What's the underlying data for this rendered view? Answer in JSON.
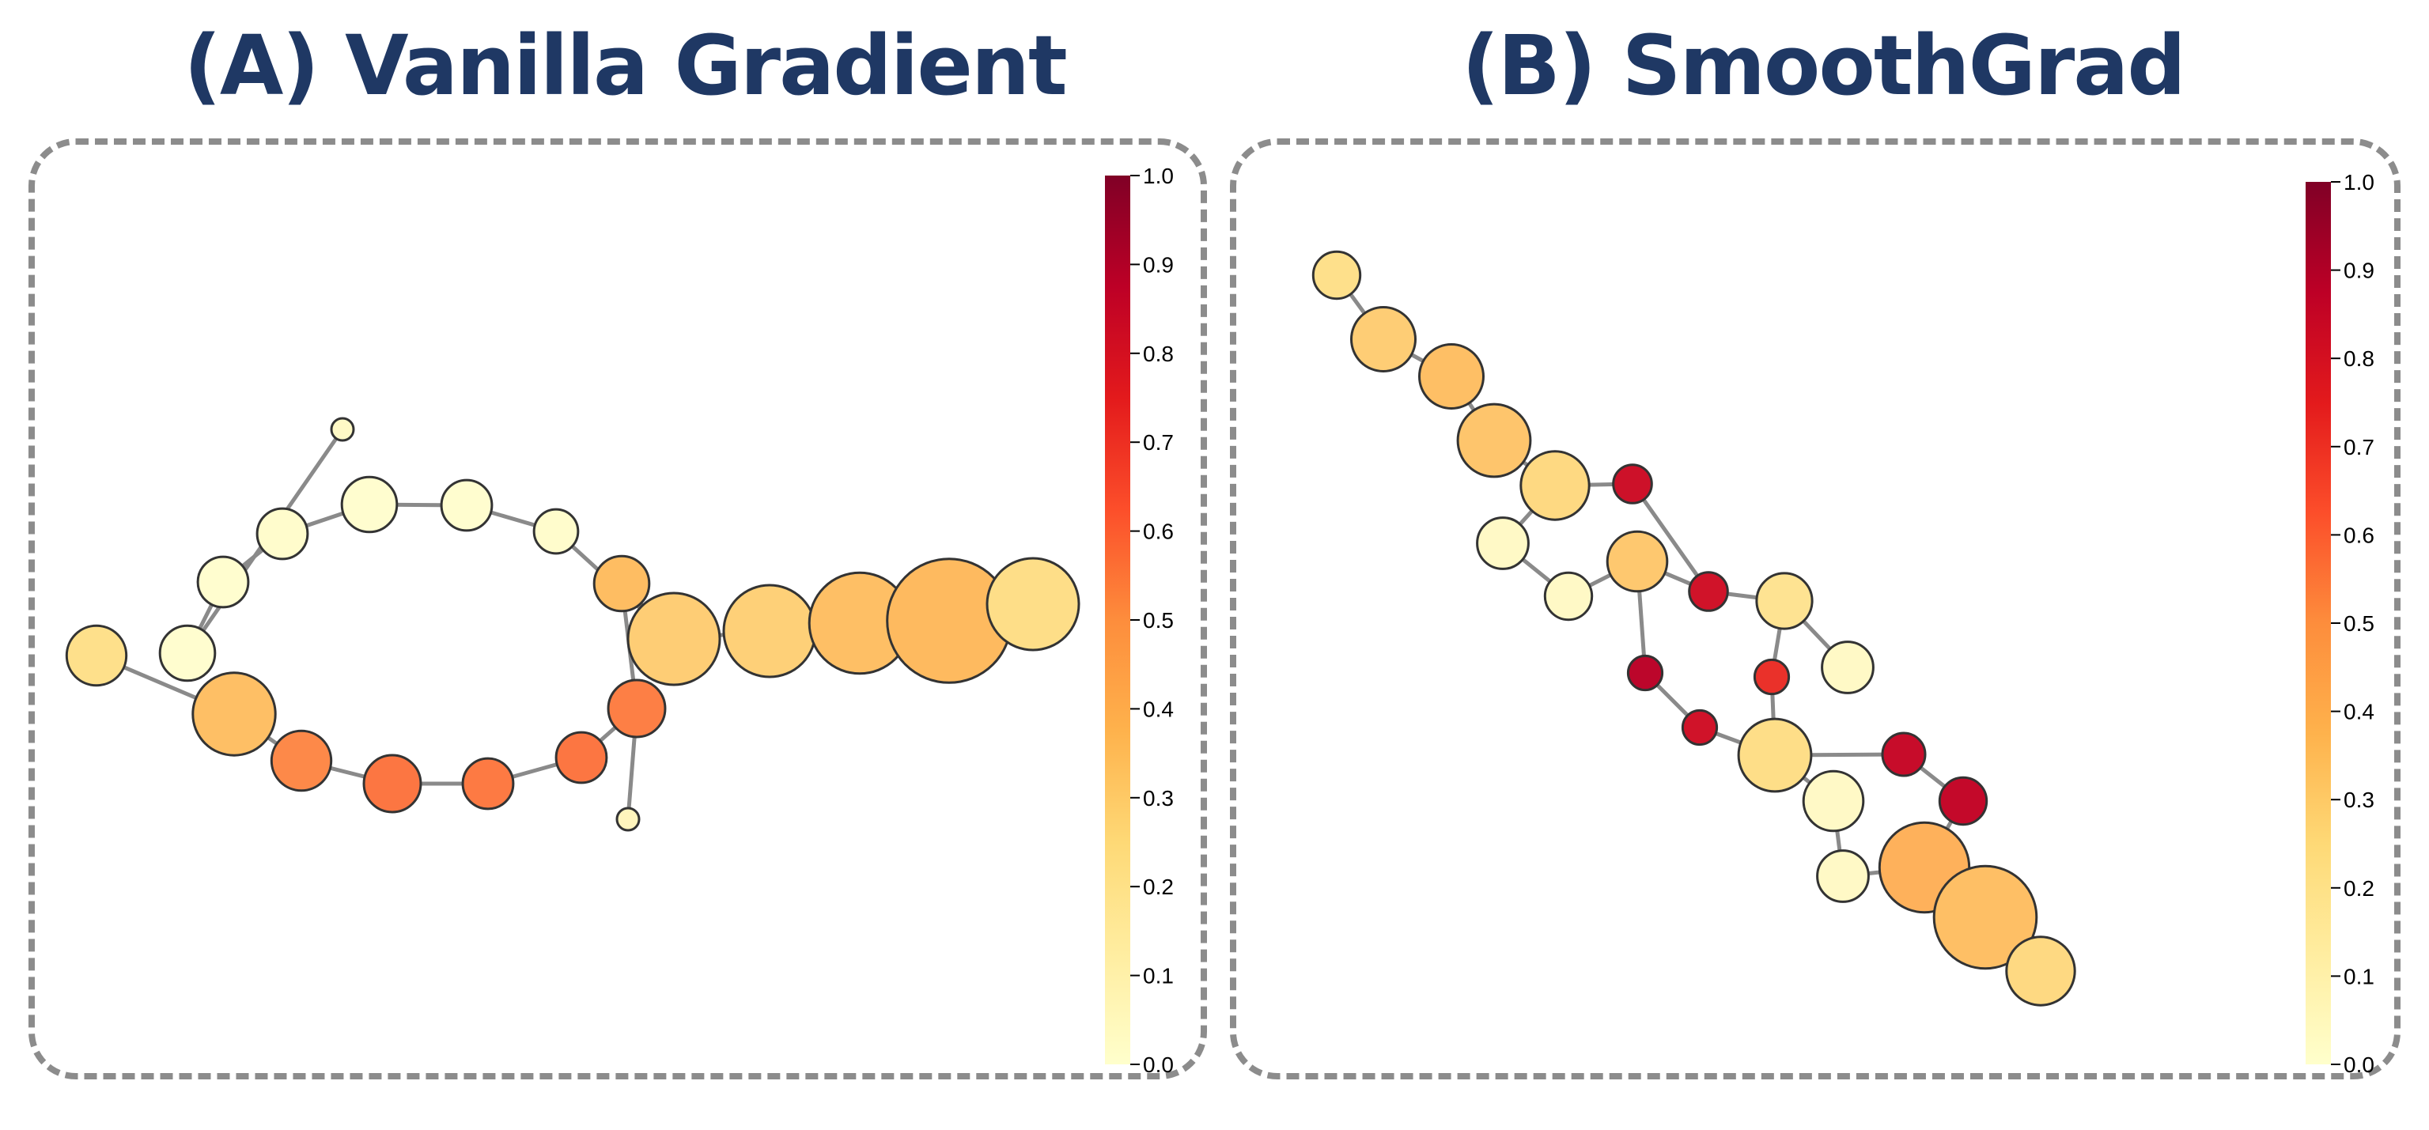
{
  "panels": [
    {
      "id": "A",
      "title": "(A) Vanilla Gradient",
      "colormap": "YlOrRd",
      "colorbar": {
        "min": 0.0,
        "max": 1.0,
        "ticks": [
          "0.0",
          "0.1",
          "0.2",
          "0.3",
          "0.4",
          "0.5",
          "0.6",
          "0.7",
          "0.8",
          "0.9",
          "1.0"
        ]
      },
      "graph": {
        "nodes": [
          {
            "id": 0,
            "value": 0.05,
            "weight": 0.2
          },
          {
            "id": 1,
            "value": 0.02,
            "weight": 0.6
          },
          {
            "id": 2,
            "value": 0.02,
            "weight": 0.55
          },
          {
            "id": 3,
            "value": 0.03,
            "weight": 0.55
          },
          {
            "id": 4,
            "value": 0.02,
            "weight": 0.6
          },
          {
            "id": 5,
            "value": 0.02,
            "weight": 0.55
          },
          {
            "id": 6,
            "value": 0.03,
            "weight": 0.48
          },
          {
            "id": 7,
            "value": 0.31,
            "weight": 1.0
          },
          {
            "id": 8,
            "value": 0.37,
            "weight": 0.6
          },
          {
            "id": 9,
            "value": 0.55,
            "weight": 0.62
          },
          {
            "id": 10,
            "value": 0.57,
            "weight": 0.55
          },
          {
            "id": 11,
            "value": 0.56,
            "weight": 0.55
          },
          {
            "id": 12,
            "value": 0.57,
            "weight": 0.62
          },
          {
            "id": 13,
            "value": 0.53,
            "weight": 0.65
          },
          {
            "id": 14,
            "value": 0.36,
            "weight": 0.9
          },
          {
            "id": 15,
            "value": 0.24,
            "weight": 0.65
          },
          {
            "id": 16,
            "value": 0.08,
            "weight": 0.24
          },
          {
            "id": 17,
            "value": 0.3,
            "weight": 1.0
          },
          {
            "id": 18,
            "value": 0.36,
            "weight": 1.1
          },
          {
            "id": 19,
            "value": 0.38,
            "weight": 1.35
          },
          {
            "id": 20,
            "value": 0.25,
            "weight": 1.0
          }
        ],
        "edges": [
          [
            0,
            1
          ],
          [
            1,
            2
          ],
          [
            2,
            3
          ],
          [
            3,
            4
          ],
          [
            4,
            5
          ],
          [
            5,
            6
          ],
          [
            6,
            7
          ],
          [
            7,
            8
          ],
          [
            8,
            9
          ],
          [
            9,
            10
          ],
          [
            10,
            11
          ],
          [
            11,
            12
          ],
          [
            12,
            13
          ],
          [
            13,
            14
          ],
          [
            14,
            15
          ],
          [
            9,
            16
          ],
          [
            7,
            17
          ],
          [
            17,
            18
          ],
          [
            18,
            19
          ],
          [
            19,
            20
          ]
        ]
      }
    },
    {
      "id": "B",
      "title": "(B) SmoothGrad",
      "colormap": "YlOrRd",
      "colorbar": {
        "min": 0.0,
        "max": 1.0,
        "ticks": [
          "0.0",
          "0.1",
          "0.2",
          "0.3",
          "0.4",
          "0.5",
          "0.6",
          "0.7",
          "0.8",
          "0.9",
          "1.0"
        ]
      },
      "graph": {
        "nodes": [
          {
            "id": 0,
            "value": 0.24,
            "weight": 0.55
          },
          {
            "id": 1,
            "value": 0.31,
            "weight": 0.75
          },
          {
            "id": 2,
            "value": 0.36,
            "weight": 0.75
          },
          {
            "id": 3,
            "value": 0.34,
            "weight": 0.85
          },
          {
            "id": 4,
            "value": 0.27,
            "weight": 0.8
          },
          {
            "id": 5,
            "value": 0.83,
            "weight": 0.45
          },
          {
            "id": 6,
            "value": 0.05,
            "weight": 0.6
          },
          {
            "id": 7,
            "value": 0.05,
            "weight": 0.55
          },
          {
            "id": 8,
            "value": 0.33,
            "weight": 0.7
          },
          {
            "id": 9,
            "value": 0.82,
            "weight": 0.45
          },
          {
            "id": 10,
            "value": 0.22,
            "weight": 0.65
          },
          {
            "id": 11,
            "value": 0.05,
            "weight": 0.6
          },
          {
            "id": 12,
            "value": 0.72,
            "weight": 0.4
          },
          {
            "id": 13,
            "value": 0.88,
            "weight": 0.4
          },
          {
            "id": 14,
            "value": 0.82,
            "weight": 0.4
          },
          {
            "id": 15,
            "value": 0.25,
            "weight": 0.85
          },
          {
            "id": 16,
            "value": 0.05,
            "weight": 0.7
          },
          {
            "id": 17,
            "value": 0.05,
            "weight": 0.6
          },
          {
            "id": 18,
            "value": 0.85,
            "weight": 0.5
          },
          {
            "id": 19,
            "value": 0.86,
            "weight": 0.55
          },
          {
            "id": 20,
            "value": 0.41,
            "weight": 1.05
          },
          {
            "id": 21,
            "value": 0.36,
            "weight": 1.2
          },
          {
            "id": 22,
            "value": 0.27,
            "weight": 0.8
          }
        ],
        "edges": [
          [
            0,
            1
          ],
          [
            1,
            2
          ],
          [
            2,
            3
          ],
          [
            3,
            4
          ],
          [
            4,
            5
          ],
          [
            5,
            9
          ],
          [
            4,
            6
          ],
          [
            6,
            7
          ],
          [
            7,
            8
          ],
          [
            8,
            9
          ],
          [
            9,
            10
          ],
          [
            10,
            11
          ],
          [
            8,
            13
          ],
          [
            13,
            14
          ],
          [
            14,
            15
          ],
          [
            8,
            9
          ],
          [
            10,
            12
          ],
          [
            12,
            15
          ],
          [
            15,
            16
          ],
          [
            15,
            18
          ],
          [
            18,
            19
          ],
          [
            19,
            20
          ],
          [
            16,
            17
          ],
          [
            17,
            20
          ],
          [
            20,
            21
          ],
          [
            21,
            22
          ]
        ]
      }
    }
  ]
}
